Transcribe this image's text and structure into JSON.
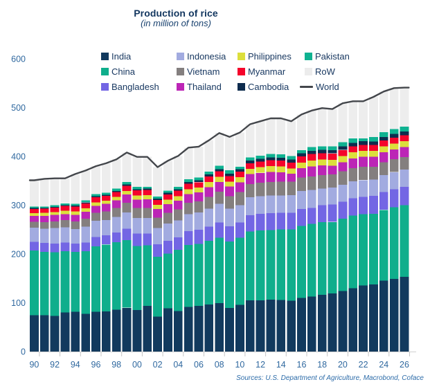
{
  "header": {
    "title": "Production of rice",
    "subtitle": "(in million of tons)"
  },
  "footer": {
    "sources": "Sources: U.S. Department of Agriculture, Macrobond, Coface"
  },
  "palette": {
    "title_text": "#12365f",
    "legend_text": "#16365f",
    "axis_text": "#2f689f",
    "axis_line": "#cfcfcf",
    "world_line": "#43464b"
  },
  "legend": {
    "items": [
      {
        "label": "India",
        "color": "#123a5e",
        "marker": "square"
      },
      {
        "label": "Indonesia",
        "color": "#a2abe0",
        "marker": "square"
      },
      {
        "label": "Philippines",
        "color": "#dcdf3c",
        "marker": "square"
      },
      {
        "label": "Pakistan",
        "color": "#0fb291",
        "marker": "square"
      },
      {
        "label": "China",
        "color": "#0fae8c",
        "marker": "square"
      },
      {
        "label": "Vietnam",
        "color": "#847f7f",
        "marker": "square"
      },
      {
        "label": "Myanmar",
        "color": "#f5042b",
        "marker": "square"
      },
      {
        "label": "RoW",
        "color": "#ececec",
        "marker": "square"
      },
      {
        "label": "Bangladesh",
        "color": "#7366e4",
        "marker": "square"
      },
      {
        "label": "Thailand",
        "color": "#bc25b6",
        "marker": "square"
      },
      {
        "label": "Cambodia",
        "color": "#0e2c4e",
        "marker": "square"
      },
      {
        "label": "World",
        "color": "#43464b",
        "marker": "line"
      }
    ]
  },
  "chart_data": {
    "type": "bar",
    "stacked": true,
    "title": "Production of rice",
    "subtitle": "(in million of tons)",
    "xlabel": "",
    "ylabel": "",
    "ylim": [
      0,
      600
    ],
    "yticks": [
      0,
      100,
      200,
      300,
      400,
      500,
      600
    ],
    "grid": false,
    "legend_position": "top",
    "years": [
      1990,
      1991,
      1992,
      1993,
      1994,
      1995,
      1996,
      1997,
      1998,
      1999,
      2000,
      2001,
      2002,
      2003,
      2004,
      2005,
      2006,
      2007,
      2008,
      2009,
      2010,
      2011,
      2012,
      2013,
      2014,
      2015,
      2016,
      2017,
      2018,
      2019,
      2020,
      2021,
      2022,
      2023,
      2024,
      2025,
      2026
    ],
    "x_tick_labels": [
      "90",
      "92",
      "94",
      "96",
      "98",
      "00",
      "02",
      "04",
      "06",
      "08",
      "10",
      "12",
      "14",
      "16",
      "18",
      "20",
      "22",
      "24",
      "26"
    ],
    "series": [
      {
        "name": "India",
        "color": "#123a5e",
        "values": [
          74.3,
          74.7,
          72.9,
          80.3,
          81.8,
          77.0,
          81.7,
          82.5,
          86.1,
          89.7,
          85.0,
          93.3,
          71.8,
          88.5,
          83.1,
          91.8,
          93.4,
          96.7,
          99.2,
          89.1,
          96.0,
          105.3,
          105.2,
          106.7,
          105.5,
          104.4,
          109.7,
          112.8,
          116.5,
          118.9,
          124.4,
          129.5,
          135.8,
          137.8,
          145.1,
          149.0,
          153.0
        ]
      },
      {
        "name": "China",
        "color": "#0fae8c",
        "values": [
          132.5,
          129.6,
          130.4,
          125.3,
          122.5,
          129.0,
          134.0,
          137.0,
          137.8,
          138.9,
          131.5,
          124.3,
          122.2,
          112.5,
          125.4,
          126.4,
          127.2,
          130.2,
          134.3,
          136.6,
          137.0,
          140.7,
          143.0,
          142.5,
          144.6,
          145.8,
          147.8,
          148.9,
          148.5,
          146.7,
          148.3,
          148.9,
          145.9,
          144.6,
          145.3,
          146.5,
          147.0
        ]
      },
      {
        "name": "Bangladesh",
        "color": "#7366e4",
        "values": [
          17.9,
          18.3,
          18.2,
          18.0,
          16.8,
          17.7,
          18.9,
          18.9,
          19.9,
          23.1,
          25.1,
          24.3,
          25.8,
          26.2,
          25.6,
          28.8,
          29.0,
          28.8,
          31.2,
          31.0,
          31.7,
          33.7,
          33.8,
          34.4,
          34.5,
          34.5,
          34.6,
          32.7,
          34.9,
          35.9,
          34.6,
          35.9,
          35.7,
          37.0,
          36.8,
          37.2,
          37.5
        ]
      },
      {
        "name": "Indonesia",
        "color": "#a2abe0",
        "values": [
          29.0,
          29.4,
          31.4,
          31.0,
          30.1,
          32.3,
          33.2,
          31.1,
          32.1,
          33.4,
          32.4,
          32.0,
          33.4,
          35.0,
          34.8,
          34.9,
          35.3,
          37.0,
          38.3,
          36.4,
          35.5,
          36.5,
          36.6,
          36.3,
          35.6,
          36.2,
          36.9,
          37.0,
          34.2,
          34.7,
          34.5,
          34.4,
          34.0,
          33.0,
          34.6,
          35.0,
          35.2
        ]
      },
      {
        "name": "Vietnam",
        "color": "#847f7f",
        "values": [
          12.4,
          13.1,
          14.0,
          14.7,
          15.4,
          16.1,
          16.8,
          17.7,
          18.6,
          20.1,
          20.5,
          20.6,
          21.5,
          21.9,
          22.7,
          22.8,
          22.9,
          24.4,
          24.4,
          25.0,
          26.4,
          27.1,
          27.5,
          28.0,
          28.2,
          27.6,
          27.5,
          27.7,
          27.3,
          27.1,
          27.4,
          27.3,
          27.0,
          26.6,
          26.5,
          26.3,
          26.0
        ]
      },
      {
        "name": "Thailand",
        "color": "#bc25b6",
        "values": [
          11.9,
          13.2,
          13.0,
          12.3,
          13.5,
          14.3,
          14.0,
          15.6,
          15.6,
          16.5,
          17.0,
          17.5,
          17.2,
          18.0,
          17.4,
          18.2,
          18.3,
          19.8,
          19.9,
          20.3,
          20.3,
          20.5,
          20.2,
          20.5,
          18.8,
          15.8,
          19.2,
          20.4,
          20.3,
          17.7,
          18.9,
          19.9,
          20.9,
          20.0,
          20.1,
          20.4,
          20.3
        ]
      },
      {
        "name": "Philippines",
        "color": "#dcdf3c",
        "values": [
          6.0,
          6.2,
          6.0,
          6.7,
          6.9,
          7.0,
          7.4,
          6.5,
          6.8,
          7.7,
          8.1,
          8.4,
          8.5,
          9.2,
          9.4,
          9.8,
          9.8,
          10.5,
          10.8,
          9.8,
          10.5,
          10.7,
          11.4,
          11.9,
          11.9,
          11.0,
          11.7,
          12.2,
          11.7,
          11.9,
          12.4,
          12.5,
          12.4,
          12.3,
          12.0,
          12.2,
          12.3
        ]
      },
      {
        "name": "Myanmar",
        "color": "#f5042b",
        "values": [
          8.6,
          8.2,
          9.2,
          10.0,
          10.4,
          10.4,
          10.3,
          9.6,
          10.1,
          10.6,
          10.8,
          10.8,
          10.6,
          11.0,
          11.4,
          11.0,
          11.2,
          11.6,
          11.4,
          11.6,
          11.1,
          11.3,
          11.7,
          11.9,
          12.2,
          12.2,
          12.5,
          13.2,
          13.2,
          13.1,
          12.6,
          12.2,
          12.0,
          11.9,
          11.9,
          12.0,
          12.0
        ]
      },
      {
        "name": "Cambodia",
        "color": "#0e2c4e",
        "values": [
          1.5,
          1.5,
          1.6,
          1.6,
          1.8,
          2.2,
          2.2,
          2.2,
          2.4,
          2.6,
          2.5,
          2.6,
          2.4,
          3.0,
          2.7,
          3.8,
          3.9,
          4.2,
          4.5,
          4.9,
          5.2,
          5.6,
          5.9,
          6.0,
          6.0,
          6.1,
          6.3,
          6.5,
          6.8,
          7.0,
          7.3,
          7.3,
          7.4,
          7.5,
          7.5,
          7.6,
          7.7
        ]
      },
      {
        "name": "Pakistan",
        "color": "#0fb291",
        "values": [
          3.3,
          3.2,
          3.1,
          4.0,
          3.4,
          3.9,
          4.3,
          4.3,
          4.7,
          5.2,
          4.8,
          3.9,
          4.5,
          4.8,
          5.0,
          5.5,
          5.4,
          5.6,
          6.9,
          6.8,
          5.0,
          6.2,
          5.8,
          6.8,
          7.0,
          6.8,
          6.9,
          7.5,
          7.3,
          7.4,
          8.4,
          9.3,
          5.5,
          9.0,
          9.9,
          10.0,
          10.2
        ]
      },
      {
        "name": "RoW",
        "color": "#ededed",
        "values": [
          53.6,
          56.6,
          55.2,
          51.1,
          61.4,
          61.1,
          57.2,
          60.6,
          59.9,
          60.2,
          61.3,
          61.3,
          60.1,
          60.9,
          63.5,
          65.0,
          63.6,
          64.2,
          67.1,
          68.5,
          70.3,
          68.4,
          70.9,
          73.0,
          73.7,
          71.6,
          72.9,
          75.1,
          78.3,
          76.6,
          80.2,
          75.8,
          76.4,
          82.3,
          83.3,
          83.8,
          79.8
        ]
      }
    ],
    "line_series": {
      "name": "World",
      "color": "#43464b",
      "values": [
        351,
        354,
        355,
        355,
        364,
        371,
        380,
        386,
        394,
        408,
        399,
        399,
        378,
        391,
        401,
        418,
        420,
        433,
        448,
        440,
        449,
        466,
        472,
        478,
        478,
        472,
        486,
        494,
        499,
        497,
        509,
        513,
        513,
        522,
        533,
        540,
        541
      ]
    }
  }
}
